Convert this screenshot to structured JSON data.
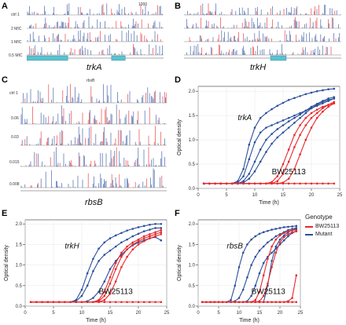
{
  "panels": {
    "A": {
      "letter": "A",
      "gene": "trkA",
      "tracks": [
        "ctrl 1",
        "2 MIC",
        "1 MIC",
        "0.5 MIC"
      ],
      "scale_label": "1000"
    },
    "B": {
      "letter": "B",
      "gene": "trkH"
    },
    "C": {
      "letter": "C",
      "gene": "rbsB",
      "top_label": "rbsB",
      "tracks": [
        "ctrl 1",
        "0.06",
        "0.03",
        "0.015",
        "0.008"
      ]
    },
    "D": {
      "letter": "D"
    },
    "E": {
      "letter": "E"
    },
    "F": {
      "letter": "F"
    }
  },
  "legend": {
    "title": "Genotype",
    "items": [
      {
        "label": "BW25113",
        "color": "#e8282b"
      },
      {
        "label": "Mutant",
        "color": "#2a4f9c"
      }
    ]
  },
  "colors": {
    "wildtype": "#e8282b",
    "mutant": "#2a4f9c",
    "gene_bar": "#5bc2d0"
  },
  "chart_data": [
    {
      "panel": "D",
      "type": "line",
      "xlabel": "Time (h)",
      "ylabel": "Optical density",
      "xlim": [
        0,
        25
      ],
      "ylim": [
        0,
        2.1
      ],
      "xticks": [
        0,
        5,
        10,
        15,
        20,
        25
      ],
      "yticks": [
        0,
        0.5,
        1.0,
        1.5,
        2.0
      ],
      "annotations": [
        "trkA",
        "BW25113"
      ],
      "x": [
        1,
        2,
        3,
        4,
        5,
        6,
        7,
        8,
        9,
        10,
        11,
        12,
        13,
        14,
        15,
        16,
        17,
        18,
        19,
        20,
        21,
        22,
        23,
        24
      ],
      "series": [
        {
          "group": "mutant",
          "values": [
            0.1,
            0.1,
            0.1,
            0.1,
            0.1,
            0.1,
            0.15,
            0.4,
            0.9,
            1.25,
            1.45,
            1.55,
            1.63,
            1.7,
            1.76,
            1.82,
            1.86,
            1.9,
            1.94,
            1.97,
            2.0,
            2.02,
            2.04,
            2.05
          ]
        },
        {
          "group": "mutant",
          "values": [
            0.1,
            0.1,
            0.1,
            0.1,
            0.1,
            0.1,
            0.12,
            0.25,
            0.6,
            0.95,
            1.15,
            1.25,
            1.3,
            1.35,
            1.4,
            1.45,
            1.5,
            1.55,
            1.6,
            1.65,
            1.7,
            1.75,
            1.8,
            1.85
          ]
        },
        {
          "group": "mutant",
          "values": [
            0.1,
            0.1,
            0.1,
            0.1,
            0.1,
            0.1,
            0.1,
            0.15,
            0.3,
            0.55,
            0.8,
            1.0,
            1.12,
            1.22,
            1.3,
            1.38,
            1.45,
            1.52,
            1.6,
            1.68,
            1.74,
            1.8,
            1.85,
            1.88
          ]
        },
        {
          "group": "mutant",
          "values": [
            0.1,
            0.1,
            0.1,
            0.1,
            0.1,
            0.1,
            0.1,
            0.12,
            0.2,
            0.35,
            0.55,
            0.75,
            0.92,
            1.05,
            1.15,
            1.25,
            1.35,
            1.45,
            1.55,
            1.65,
            1.72,
            1.78,
            1.82,
            1.85
          ]
        },
        {
          "group": "wildtype",
          "values": [
            0.1,
            0.1,
            0.1,
            0.1,
            0.1,
            0.1,
            0.1,
            0.1,
            0.1,
            0.1,
            0.1,
            0.1,
            0.13,
            0.25,
            0.5,
            0.8,
            1.1,
            1.3,
            1.45,
            1.55,
            1.62,
            1.68,
            1.72,
            1.75
          ]
        },
        {
          "group": "wildtype",
          "values": [
            0.1,
            0.1,
            0.1,
            0.1,
            0.1,
            0.1,
            0.1,
            0.1,
            0.1,
            0.1,
            0.1,
            0.1,
            0.1,
            0.15,
            0.3,
            0.55,
            0.85,
            1.1,
            1.3,
            1.45,
            1.55,
            1.65,
            1.72,
            1.78
          ]
        },
        {
          "group": "wildtype",
          "values": [
            0.1,
            0.1,
            0.1,
            0.1,
            0.1,
            0.1,
            0.1,
            0.1,
            0.1,
            0.1,
            0.1,
            0.1,
            0.1,
            0.1,
            0.12,
            0.2,
            0.4,
            0.7,
            1.0,
            1.25,
            1.45,
            1.58,
            1.68,
            1.75
          ]
        },
        {
          "group": "wildtype",
          "values": [
            0.1,
            0.1,
            0.1,
            0.1,
            0.1,
            0.1,
            0.1,
            0.1,
            0.1,
            0.1,
            0.1,
            0.1,
            0.1,
            0.1,
            0.1,
            0.1,
            0.1,
            0.1,
            0.1,
            0.1,
            0.1,
            0.1,
            0.1,
            0.1
          ]
        }
      ]
    },
    {
      "panel": "E",
      "type": "line",
      "xlabel": "Time (h)",
      "ylabel": "Optical density",
      "xlim": [
        0,
        25
      ],
      "ylim": [
        0,
        2.1
      ],
      "xticks": [
        0,
        5,
        10,
        15,
        20,
        25
      ],
      "yticks": [
        0,
        0.5,
        1.0,
        1.5,
        2.0
      ],
      "annotations": [
        "trkH",
        "BW25113"
      ],
      "x": [
        1,
        2,
        3,
        4,
        5,
        6,
        7,
        8,
        9,
        10,
        11,
        12,
        13,
        14,
        15,
        16,
        17,
        18,
        19,
        20,
        21,
        22,
        23,
        24
      ],
      "series": [
        {
          "group": "mutant",
          "values": [
            0.1,
            0.1,
            0.1,
            0.1,
            0.1,
            0.1,
            0.1,
            0.1,
            0.15,
            0.4,
            0.8,
            1.15,
            1.4,
            1.55,
            1.65,
            1.72,
            1.78,
            1.84,
            1.88,
            1.92,
            1.95,
            1.98,
            2.0,
            2.0
          ]
        },
        {
          "group": "mutant",
          "values": [
            0.1,
            0.1,
            0.1,
            0.1,
            0.1,
            0.1,
            0.1,
            0.1,
            0.12,
            0.25,
            0.5,
            0.85,
            1.1,
            1.25,
            1.35,
            1.45,
            1.55,
            1.62,
            1.7,
            1.76,
            1.82,
            1.86,
            1.9,
            1.9
          ]
        },
        {
          "group": "mutant",
          "values": [
            0.1,
            0.1,
            0.1,
            0.1,
            0.1,
            0.1,
            0.1,
            0.1,
            0.1,
            0.1,
            0.12,
            0.2,
            0.35,
            0.6,
            0.9,
            1.1,
            1.25,
            1.38,
            1.48,
            1.55,
            1.6,
            1.65,
            1.68,
            1.6
          ]
        },
        {
          "group": "wildtype",
          "values": [
            0.1,
            0.1,
            0.1,
            0.1,
            0.1,
            0.1,
            0.1,
            0.1,
            0.1,
            0.1,
            0.1,
            0.1,
            0.15,
            0.35,
            0.7,
            1.05,
            1.3,
            1.45,
            1.55,
            1.62,
            1.7,
            1.75,
            1.8,
            1.85
          ]
        },
        {
          "group": "wildtype",
          "values": [
            0.1,
            0.1,
            0.1,
            0.1,
            0.1,
            0.1,
            0.1,
            0.1,
            0.1,
            0.1,
            0.1,
            0.1,
            0.12,
            0.25,
            0.55,
            0.9,
            1.2,
            1.38,
            1.5,
            1.58,
            1.65,
            1.7,
            1.75,
            1.8
          ]
        },
        {
          "group": "wildtype",
          "values": [
            0.1,
            0.1,
            0.1,
            0.1,
            0.1,
            0.1,
            0.1,
            0.1,
            0.1,
            0.1,
            0.1,
            0.1,
            0.1,
            0.15,
            0.3,
            0.6,
            0.95,
            1.2,
            1.38,
            1.5,
            1.58,
            1.65,
            1.7,
            1.75
          ]
        },
        {
          "group": "wildtype",
          "values": [
            0.1,
            0.1,
            0.1,
            0.1,
            0.1,
            0.1,
            0.1,
            0.1,
            0.1,
            0.1,
            0.1,
            0.1,
            0.1,
            0.1,
            0.1,
            0.1,
            0.1,
            0.1,
            0.1,
            0.1,
            0.1,
            0.1,
            0.1,
            0.1
          ]
        }
      ]
    },
    {
      "panel": "F",
      "type": "line",
      "xlabel": "Time (h)",
      "ylabel": "Optical density",
      "xlim": [
        0,
        25
      ],
      "ylim": [
        0,
        2.1
      ],
      "xticks": [
        0,
        5,
        10,
        15,
        20,
        25
      ],
      "yticks": [
        0,
        0.5,
        1.0,
        1.5,
        2.0
      ],
      "annotations": [
        "rbsB",
        "BW25113"
      ],
      "x": [
        1,
        2,
        3,
        4,
        5,
        6,
        7,
        8,
        9,
        10,
        11,
        12,
        13,
        14,
        15,
        16,
        17,
        18,
        19,
        20,
        21,
        22,
        23,
        24
      ],
      "series": [
        {
          "group": "mutant",
          "values": [
            0.1,
            0.1,
            0.1,
            0.1,
            0.1,
            0.1,
            0.1,
            0.15,
            0.5,
            0.95,
            1.3,
            1.5,
            1.62,
            1.7,
            1.76,
            1.8,
            1.83,
            1.86,
            1.88,
            1.9,
            1.92,
            1.93,
            1.94,
            1.95
          ]
        },
        {
          "group": "mutant",
          "values": [
            0.1,
            0.1,
            0.1,
            0.1,
            0.1,
            0.1,
            0.1,
            0.1,
            0.12,
            0.2,
            0.4,
            0.7,
            1.0,
            1.2,
            1.35,
            1.45,
            1.55,
            1.62,
            1.7,
            1.75,
            1.8,
            1.85,
            1.88,
            1.9
          ]
        },
        {
          "group": "mutant",
          "values": [
            0.1,
            0.1,
            0.1,
            0.1,
            0.1,
            0.1,
            0.1,
            0.1,
            0.1,
            0.1,
            0.1,
            0.12,
            0.25,
            0.5,
            0.8,
            1.05,
            1.2,
            1.3,
            1.4,
            1.5,
            1.6,
            1.7,
            1.78,
            1.82
          ]
        },
        {
          "group": "mutant",
          "values": [
            0.1,
            0.1,
            0.1,
            0.1,
            0.1,
            0.1,
            0.1,
            0.1,
            0.1,
            0.1,
            0.1,
            0.1,
            0.1,
            0.1,
            0.1,
            0.1,
            0.5,
            1.1,
            1.45,
            1.62,
            1.72,
            1.8,
            1.85,
            1.88
          ]
        },
        {
          "group": "wildtype",
          "values": [
            0.1,
            0.1,
            0.1,
            0.1,
            0.1,
            0.1,
            0.1,
            0.1,
            0.1,
            0.1,
            0.1,
            0.1,
            0.1,
            0.15,
            0.35,
            0.75,
            1.15,
            1.45,
            1.62,
            1.72,
            1.78,
            1.82,
            1.85,
            1.85
          ]
        },
        {
          "group": "wildtype",
          "values": [
            0.1,
            0.1,
            0.1,
            0.1,
            0.1,
            0.1,
            0.1,
            0.1,
            0.1,
            0.1,
            0.1,
            0.1,
            0.1,
            0.1,
            0.12,
            0.25,
            0.55,
            0.95,
            1.3,
            1.55,
            1.68,
            1.75,
            1.8,
            1.82
          ]
        },
        {
          "group": "wildtype",
          "values": [
            0.1,
            0.1,
            0.1,
            0.1,
            0.1,
            0.1,
            0.1,
            0.1,
            0.1,
            0.1,
            0.1,
            0.1,
            0.1,
            0.1,
            0.1,
            0.1,
            0.1,
            0.1,
            0.1,
            0.1,
            0.1,
            0.12,
            0.2,
            0.75
          ]
        },
        {
          "group": "wildtype",
          "values": [
            0.1,
            0.1,
            0.1,
            0.1,
            0.1,
            0.1,
            0.1,
            0.1,
            0.1,
            0.1,
            0.1,
            0.1,
            0.1,
            0.1,
            0.1,
            0.1,
            0.1,
            0.1,
            0.1,
            0.1,
            0.1,
            0.1,
            0.1,
            0.1
          ]
        }
      ]
    }
  ]
}
